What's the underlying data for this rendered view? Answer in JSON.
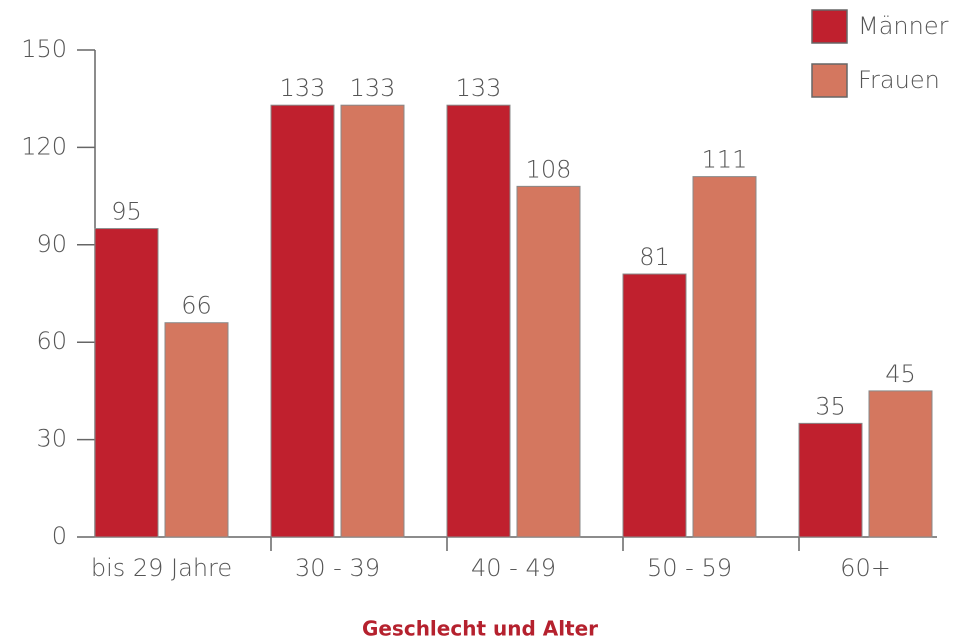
{
  "chart_data": {
    "type": "bar",
    "categories": [
      "bis 29 Jahre",
      "30 - 39",
      "40 - 49",
      "50 - 59",
      "60+"
    ],
    "series": [
      {
        "name": "Männer",
        "color": "#c0202e",
        "values": [
          95,
          133,
          133,
          81,
          35
        ]
      },
      {
        "name": "Frauen",
        "color": "#d4775f",
        "values": [
          66,
          133,
          108,
          111,
          45
        ]
      }
    ],
    "x_label": "Geschlecht und Alter",
    "ylim": [
      0,
      150
    ],
    "yticks": [
      0,
      30,
      60,
      90,
      120,
      150
    ],
    "legend": "top-right"
  }
}
